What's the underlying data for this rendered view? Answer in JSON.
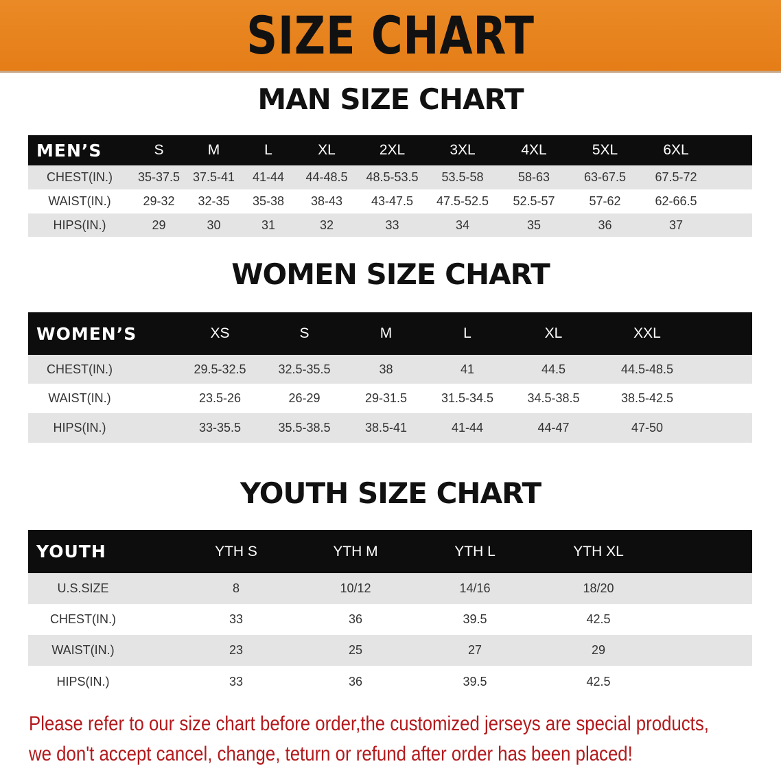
{
  "banner_title": "SIZE CHART",
  "men": {
    "title": "MAN SIZE CHART",
    "header": [
      "MEN’S",
      "S",
      "M",
      "L",
      "XL",
      "2XL",
      "3XL",
      "4XL",
      "5XL",
      "6XL"
    ],
    "rows": [
      [
        "CHEST(IN.)",
        "35-37.5",
        "37.5-41",
        "41-44",
        "44-48.5",
        "48.5-53.5",
        "53.5-58",
        "58-63",
        "63-67.5",
        "67.5-72"
      ],
      [
        "WAIST(IN.)",
        "29-32",
        "32-35",
        "35-38",
        "38-43",
        "43-47.5",
        "47.5-52.5",
        "52.5-57",
        "57-62",
        "62-66.5"
      ],
      [
        "HIPS(IN.)",
        "29",
        "30",
        "31",
        "32",
        "33",
        "34",
        "35",
        "36",
        "37"
      ]
    ]
  },
  "women": {
    "title": "WOMEN SIZE CHART",
    "header": [
      "WOMEN’S",
      "XS",
      "S",
      "M",
      "L",
      "XL",
      "XXL"
    ],
    "rows": [
      [
        "CHEST(IN.)",
        "29.5-32.5",
        "32.5-35.5",
        "38",
        "41",
        "44.5",
        "44.5-48.5"
      ],
      [
        "WAIST(IN.)",
        "23.5-26",
        "26-29",
        "29-31.5",
        "31.5-34.5",
        "34.5-38.5",
        "38.5-42.5"
      ],
      [
        "HIPS(IN.)",
        "33-35.5",
        "35.5-38.5",
        "38.5-41",
        "41-44",
        "44-47",
        "47-50"
      ]
    ]
  },
  "youth": {
    "title": "YOUTH SIZE CHART",
    "header": [
      "YOUTH",
      "YTH S",
      "YTH M",
      "YTH L",
      "YTH XL"
    ],
    "rows": [
      [
        "U.S.SIZE",
        "8",
        "10/12",
        "14/16",
        "18/20"
      ],
      [
        "CHEST(IN.)",
        "33",
        "36",
        "39.5",
        "42.5"
      ],
      [
        "WAIST(IN.)",
        "23",
        "25",
        "27",
        "29"
      ],
      [
        "HIPS(IN.)",
        "33",
        "36",
        "39.5",
        "42.5"
      ]
    ]
  },
  "note": {
    "line1": "Please refer to our size chart before order,the customized jerseys are special products,",
    "line2": "we don't accept cancel, change, teturn or refund after order has been placed!"
  },
  "colors": {
    "banner": "#e8821e",
    "header_row": "#0d0d0d",
    "stripe": "#e4e4e4",
    "note": "#b3191c"
  }
}
